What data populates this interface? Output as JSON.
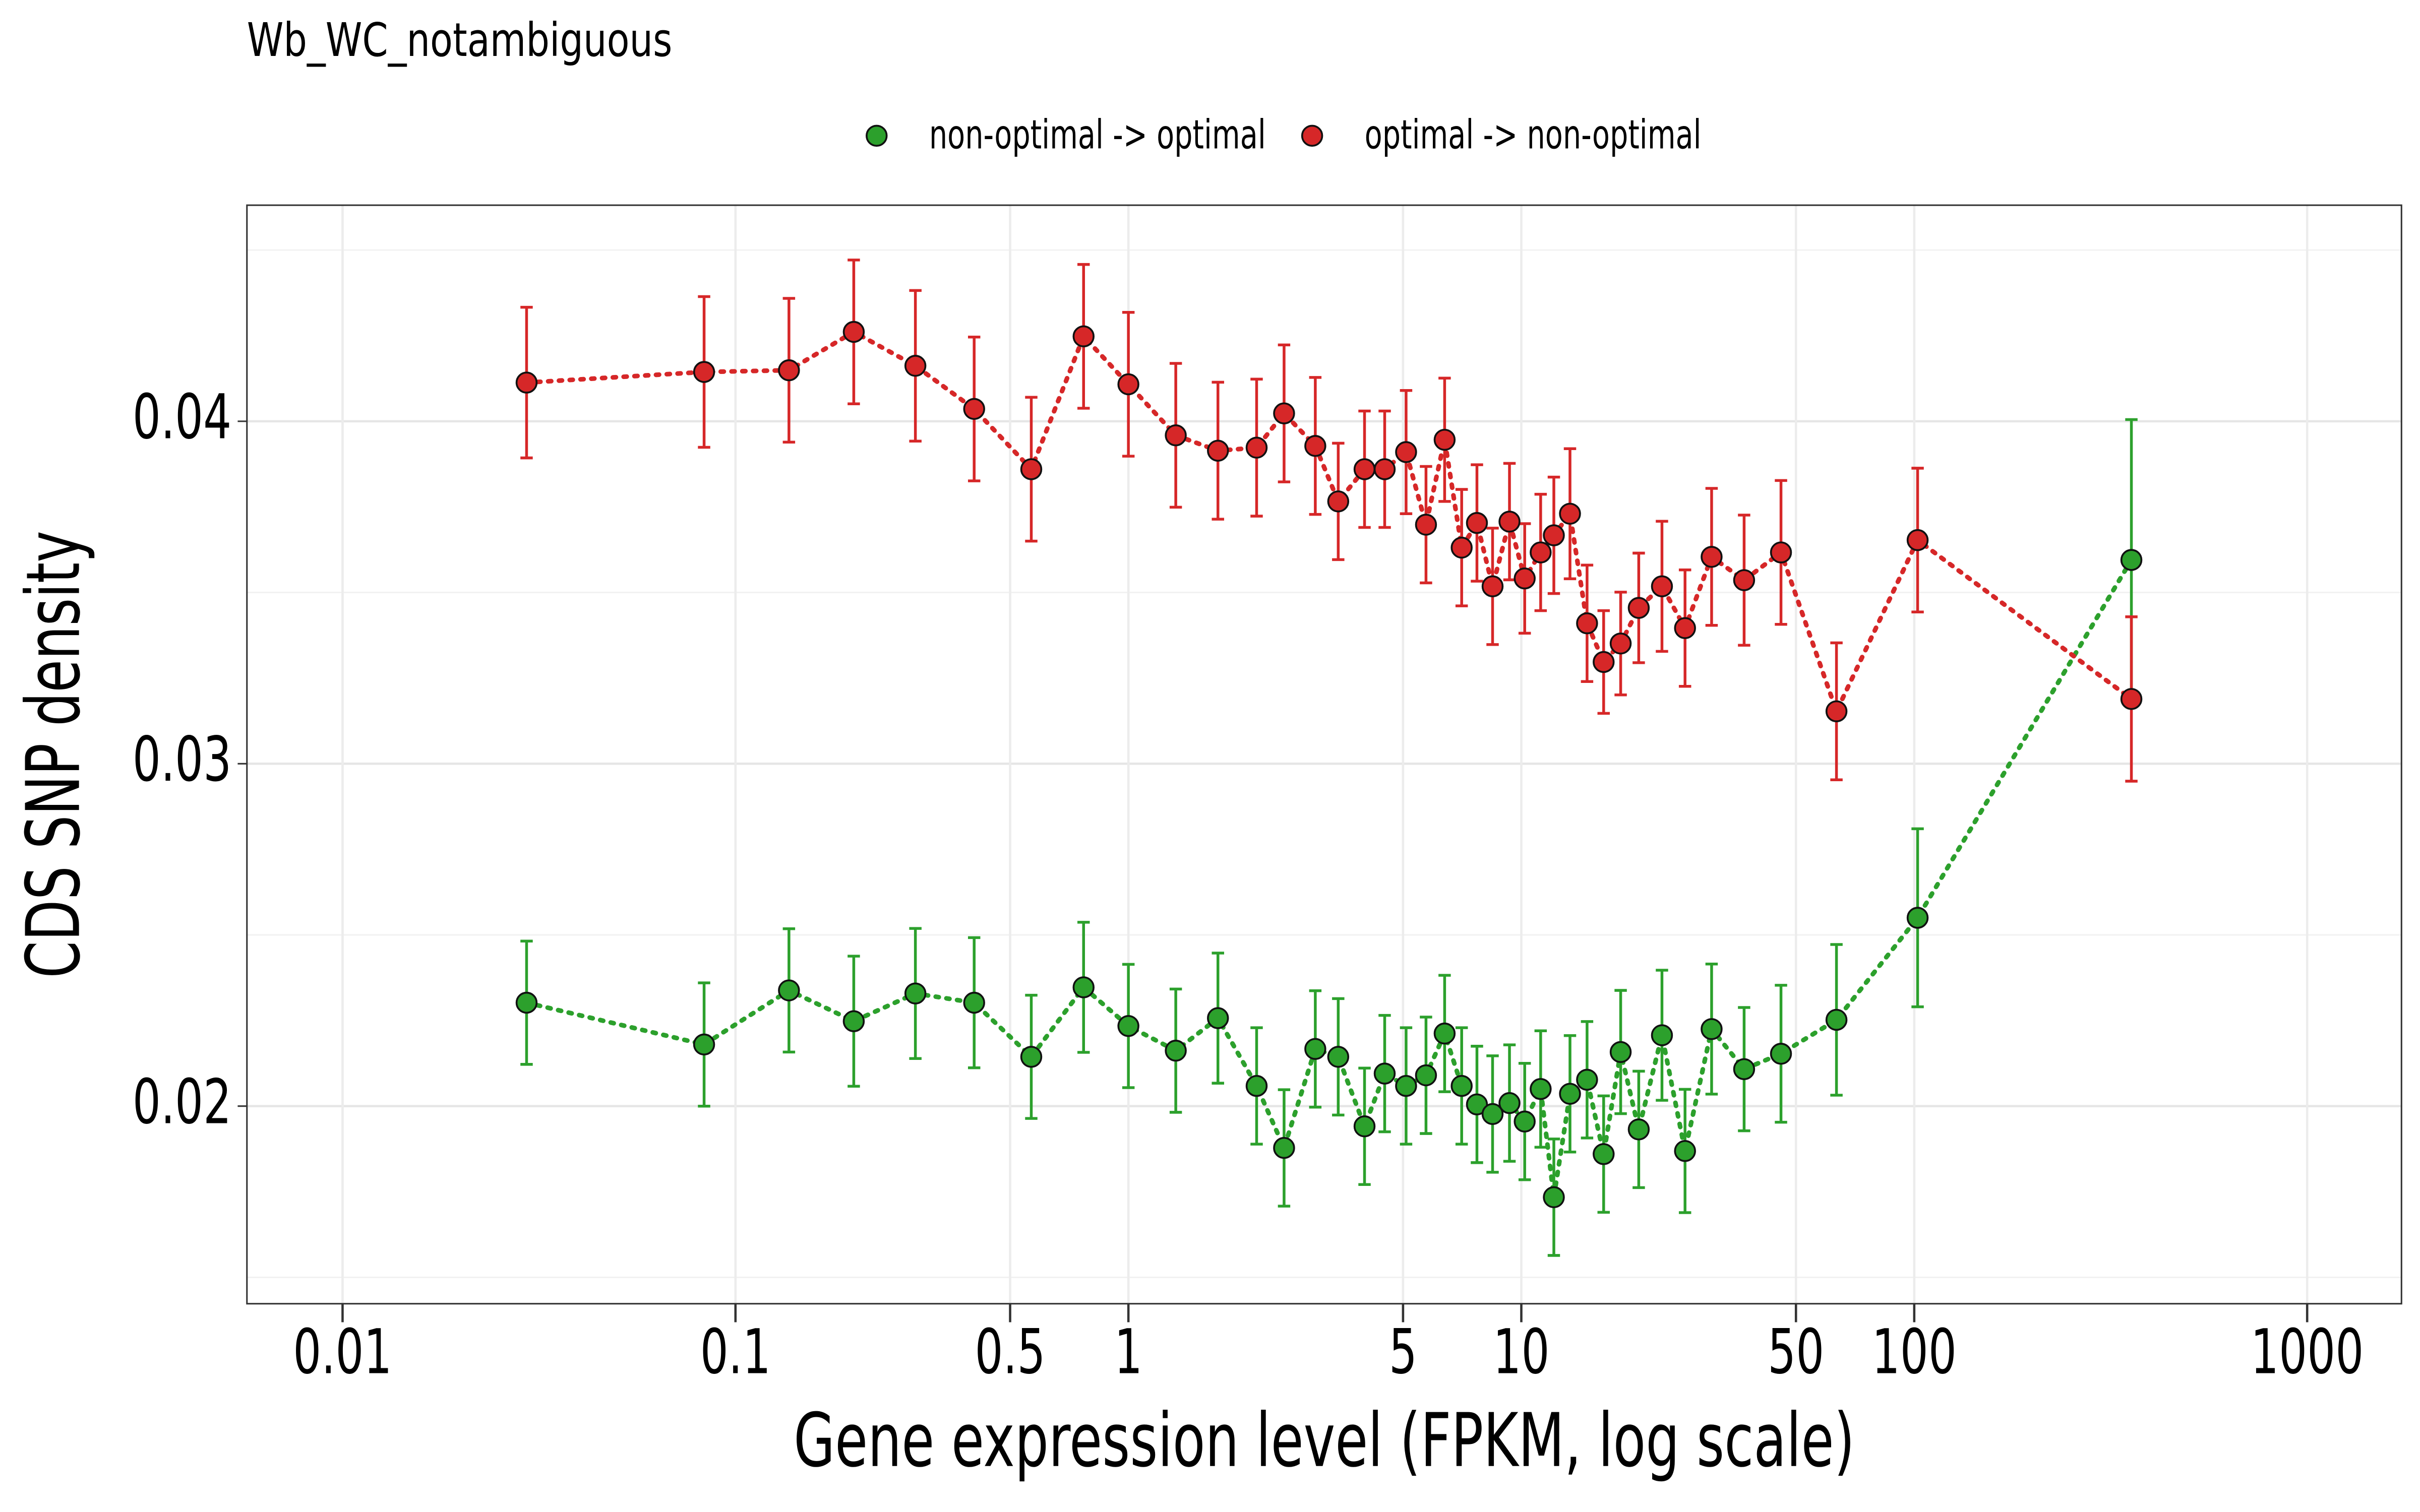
{
  "chart_data": {
    "type": "scatter",
    "title": "Wb_WC_notambiguous",
    "x_label": "Gene expression level (FPKM, log scale)",
    "y_label": "CDS SNP density",
    "x_log": true,
    "grid": true,
    "legend_position": "top",
    "xlim": [
      0.00571,
      1738
    ],
    "ylim": [
      0.01423,
      0.04631
    ],
    "xticks": [
      0.01,
      0.1,
      0.5,
      1,
      5,
      10,
      50,
      100,
      1000
    ],
    "yticks": [
      0.02,
      0.03,
      0.04
    ],
    "y_minor_ticks": [
      0.015,
      0.025,
      0.035,
      0.045
    ],
    "x": [
      0.0294,
      0.0832,
      0.1368,
      0.2,
      0.287,
      0.405,
      0.566,
      0.769,
      1.0,
      1.32,
      1.69,
      2.12,
      2.49,
      2.99,
      3.42,
      3.99,
      4.49,
      5.09,
      5.72,
      6.38,
      7.05,
      7.71,
      8.45,
      9.33,
      10.2,
      11.2,
      12.1,
      13.3,
      14.7,
      16.2,
      17.9,
      19.9,
      22.8,
      26.1,
      30.5,
      36.9,
      45.8,
      63.4,
      102,
      357
    ],
    "series": [
      {
        "name": "non-optimal -> optimal",
        "color": "#2ca02c",
        "values": [
          0.02302,
          0.0218,
          0.02338,
          0.02248,
          0.02329,
          0.02302,
          0.02144,
          0.02347,
          0.02234,
          0.02162,
          0.02257,
          0.02059,
          0.01878,
          0.02167,
          0.02144,
          0.01941,
          0.02095,
          0.02059,
          0.0209,
          0.02212,
          0.02059,
          0.02005,
          0.01977,
          0.02009,
          0.01955,
          0.0205,
          0.01734,
          0.02036,
          0.02077,
          0.0186,
          0.02158,
          0.01932,
          0.02207,
          0.01869,
          0.02225,
          0.02108,
          0.02153,
          0.02252,
          0.0255,
          0.03595
        ],
        "errors": [
          0.0018,
          0.0018,
          0.0018,
          0.0019,
          0.0019,
          0.0019,
          0.0018,
          0.0019,
          0.0018,
          0.0018,
          0.0019,
          0.0017,
          0.0017,
          0.0017,
          0.0017,
          0.0017,
          0.0017,
          0.0017,
          0.0017,
          0.0017,
          0.0017,
          0.0017,
          0.0017,
          0.0017,
          0.0017,
          0.0017,
          0.0017,
          0.0017,
          0.0017,
          0.0017,
          0.0018,
          0.0017,
          0.0019,
          0.0018,
          0.0019,
          0.0018,
          0.002,
          0.0022,
          0.0026,
          0.0041
        ]
      },
      {
        "name": "optimal -> non-optimal",
        "color": "#d62728",
        "values": [
          0.04113,
          0.04144,
          0.04149,
          0.04261,
          0.04162,
          0.04036,
          0.0386,
          0.04248,
          0.04108,
          0.03959,
          0.03914,
          0.03923,
          0.04023,
          0.03928,
          0.03766,
          0.0386,
          0.0386,
          0.0391,
          0.03698,
          0.03946,
          0.03631,
          0.03703,
          0.03518,
          0.03707,
          0.03541,
          0.03617,
          0.03667,
          0.0373,
          0.0341,
          0.03297,
          0.03351,
          0.03455,
          0.03518,
          0.03396,
          0.03604,
          0.03536,
          0.03617,
          0.03153,
          0.03653,
          0.03189
        ],
        "errors": [
          0.0022,
          0.0022,
          0.0021,
          0.0021,
          0.0022,
          0.0021,
          0.0021,
          0.0021,
          0.0021,
          0.0021,
          0.002,
          0.002,
          0.002,
          0.002,
          0.0017,
          0.0017,
          0.0017,
          0.0018,
          0.0017,
          0.0018,
          0.0017,
          0.0017,
          0.0017,
          0.0017,
          0.0016,
          0.0017,
          0.0017,
          0.0019,
          0.0017,
          0.0015,
          0.0015,
          0.0016,
          0.0019,
          0.0017,
          0.002,
          0.0019,
          0.0021,
          0.002,
          0.0021,
          0.0024
        ]
      }
    ]
  }
}
